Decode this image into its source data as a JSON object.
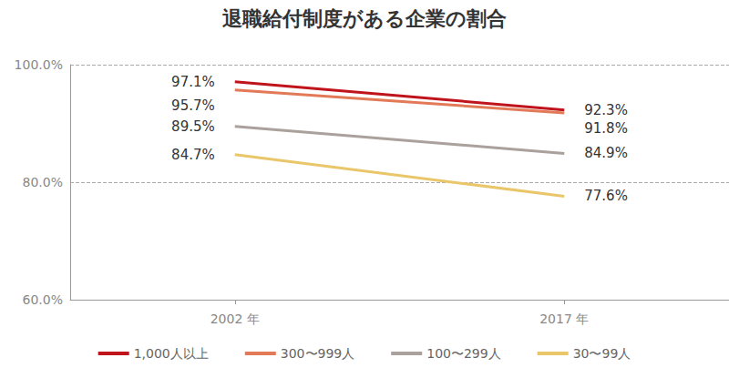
{
  "chart_data": {
    "type": "line",
    "title": "退職給付制度がある企業の割合",
    "categories": [
      "2002 年",
      "2017 年"
    ],
    "series": [
      {
        "name": "1,000人以上",
        "color": "#c0141c",
        "values": [
          97.1,
          92.3
        ],
        "value_labels": [
          "97.1%",
          "92.3%"
        ]
      },
      {
        "name": "300〜999人",
        "color": "#e27a58",
        "values": [
          95.7,
          91.8
        ],
        "value_labels": [
          "95.7%",
          "91.8%"
        ]
      },
      {
        "name": "100〜299人",
        "color": "#aaa09c",
        "values": [
          89.5,
          84.9
        ],
        "value_labels": [
          "89.5%",
          "84.9%"
        ]
      },
      {
        "name": "30〜99人",
        "color": "#eac66b",
        "values": [
          84.7,
          77.6
        ],
        "value_labels": [
          "84.7%",
          "77.6%"
        ]
      }
    ],
    "ylim": [
      60,
      100
    ],
    "yticks": [
      {
        "value": 60,
        "label": "60.0%"
      },
      {
        "value": 80,
        "label": "80.0%"
      },
      {
        "value": 100,
        "label": "100.0%"
      }
    ],
    "grid": true,
    "legend": "bottom",
    "data_labels": true
  }
}
